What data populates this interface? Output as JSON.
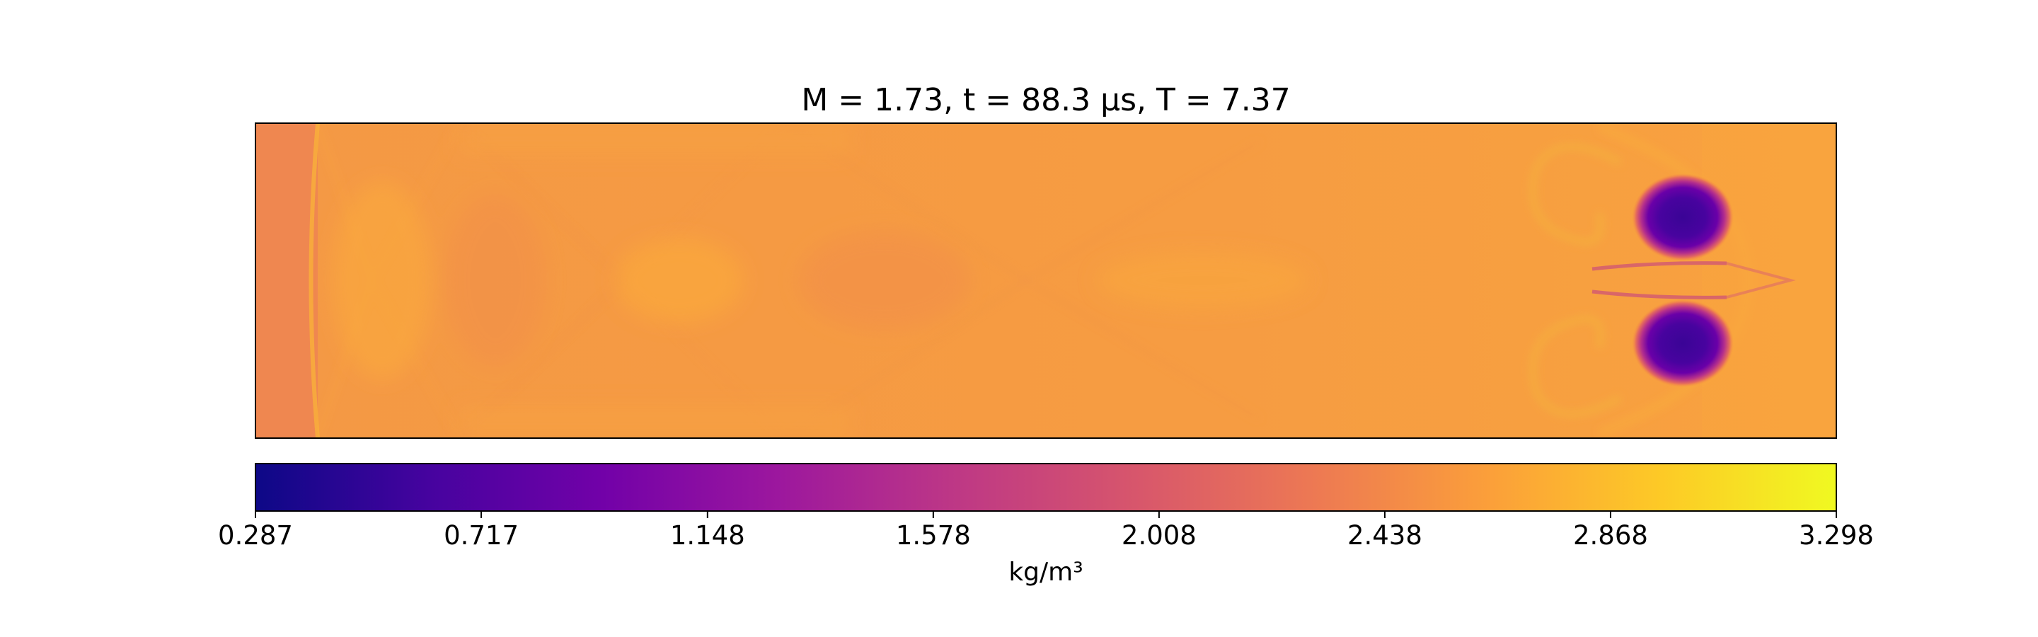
{
  "chart_data": {
    "type": "heatmap",
    "title": "M = 1.73, t = 88.3 μs, T = 7.37",
    "colormap": "plasma",
    "colorbar": {
      "label": "kg/m³",
      "vmin": 0.287,
      "vmax": 3.298,
      "ticks": [
        "0.287",
        "0.717",
        "1.148",
        "1.578",
        "2.008",
        "2.438",
        "2.868",
        "3.298"
      ],
      "orientation": "horizontal",
      "placement": "bottom"
    },
    "axes_visible": false,
    "field_description": {
      "background_density": 2.5,
      "left_inflow_density": 2.35,
      "vortex_core_density": 0.45,
      "vortex_ring_density": 1.9,
      "light_band_density": 2.75
    },
    "colors": [
      "#0d0887",
      "#46039f",
      "#7201a8",
      "#9c179e",
      "#bd3786",
      "#d8576b",
      "#ed7953",
      "#fb9f3a",
      "#fdca26",
      "#f0f921"
    ]
  }
}
